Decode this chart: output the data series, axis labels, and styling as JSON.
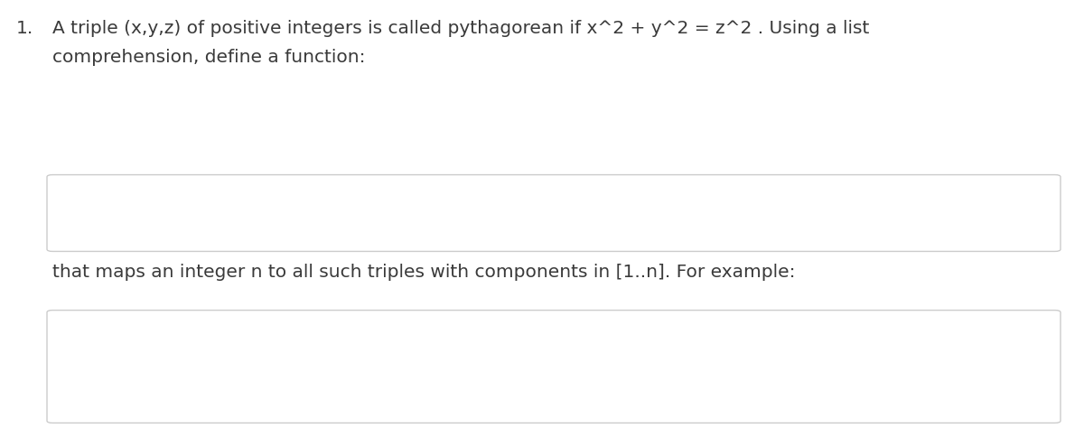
{
  "background_color": "#ffffff",
  "fig_width": 12.0,
  "fig_height": 4.85,
  "dpi": 100,
  "text_color_dark": "#3a3a3a",
  "text_color_mono": "#444444",
  "color_int_keyword": "#3d5a99",
  "color_number": "#2aa198",
  "color_result": "#2aa198",
  "color_prompt": "#444444",
  "box_edge_color": "#cccccc",
  "box_face_color": "#ffffff",
  "number_label": "1.",
  "intro_line1": "A triple (x,y,z) of positive integers is called pythagorean if x^2 + y^2 = z^2 . Using a list",
  "intro_line2": "comprehension, define a function:",
  "middle_text": "that maps an integer n to all such triples with components in [1..n]. For example:",
  "fontsize_body": 14.5,
  "fontsize_code": 14.5
}
